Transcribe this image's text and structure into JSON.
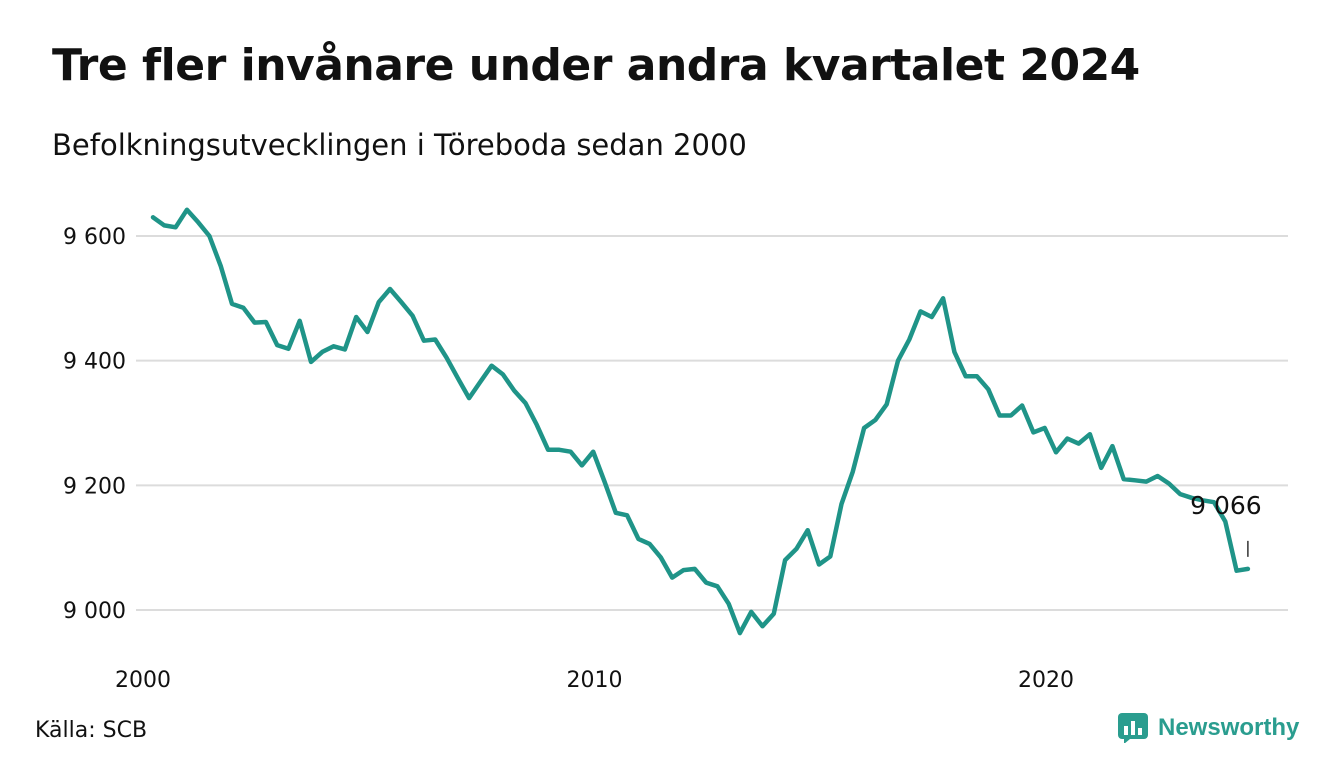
{
  "title": "Tre fler invånare under andra kvartalet 2024",
  "subtitle": "Befolkningsutvecklingen i Töreboda sedan 2000",
  "source": "Källa: SCB",
  "brand": {
    "name": "Newsworthy",
    "color": "#2a9d8f"
  },
  "chart_data": {
    "type": "line",
    "ylim": [
      8940,
      9650
    ],
    "xlim": [
      2000,
      2025.2
    ],
    "yticks": [
      9000,
      9200,
      9400,
      9600
    ],
    "ytick_labels": [
      "9 000",
      "9 200",
      "9 400",
      "9 600"
    ],
    "xticks": [
      2000,
      2010,
      2020
    ],
    "xtick_labels": [
      "2000",
      "2010",
      "2020"
    ],
    "grid": true,
    "line_color": "#1f9488",
    "end_label": "9 066",
    "series": [
      {
        "x": [
          2000.0,
          2000.25,
          2000.5,
          2000.75,
          2001.0,
          2001.25,
          2001.5,
          2001.75,
          2002.0,
          2002.25,
          2002.5,
          2002.75,
          2003.0,
          2003.25,
          2003.5,
          2003.75,
          2004.0,
          2004.25,
          2004.5,
          2004.75,
          2005.0,
          2005.25,
          2005.5,
          2005.75,
          2006.0,
          2006.25,
          2006.5,
          2006.75,
          2007.0,
          2007.25,
          2007.5,
          2007.75,
          2008.0,
          2008.25,
          2008.5,
          2008.75,
          2009.0,
          2009.25,
          2009.5,
          2009.75,
          2010.0,
          2010.25,
          2010.5,
          2010.75,
          2011.0,
          2011.25,
          2011.5,
          2011.75,
          2012.0,
          2012.25,
          2012.5,
          2012.75,
          2013.0,
          2013.25,
          2013.5,
          2013.75,
          2014.0,
          2014.25,
          2014.5,
          2014.75,
          2015.0,
          2015.25,
          2015.5,
          2015.75,
          2016.0,
          2016.25,
          2016.5,
          2016.75,
          2017.0,
          2017.25,
          2017.5,
          2017.75,
          2018.0,
          2018.25,
          2018.5,
          2018.75,
          2019.0,
          2019.25,
          2019.5,
          2019.75,
          2020.0,
          2020.25,
          2020.5,
          2020.75,
          2021.0,
          2021.25,
          2021.5,
          2021.75,
          2022.0,
          2022.25,
          2022.5,
          2022.75,
          2023.0,
          2023.25,
          2023.5,
          2023.75,
          2024.0,
          2024.25
        ],
        "values": [
          9630,
          9617,
          9614,
          9642,
          9622,
          9600,
          9552,
          9491,
          9485,
          9461,
          9462,
          9425,
          9419,
          9464,
          9398,
          9414,
          9423,
          9418,
          9470,
          9446,
          9494,
          9515,
          9494,
          9472,
          9432,
          9434,
          9405,
          9372,
          9340,
          9366,
          9392,
          9378,
          9352,
          9332,
          9297,
          9257,
          9257,
          9254,
          9232,
          9254,
          9206,
          9156,
          9152,
          9114,
          9106,
          9084,
          9052,
          9064,
          9066,
          9044,
          9038,
          9010,
          8963,
          8997,
          8974,
          8994,
          9080,
          9098,
          9128,
          9073,
          9086,
          9170,
          9222,
          9292,
          9305,
          9330,
          9400,
          9434,
          9479,
          9470,
          9500,
          9414,
          9375,
          9375,
          9354,
          9312,
          9312,
          9328,
          9285,
          9292,
          9253,
          9275,
          9267,
          9282,
          9228,
          9263,
          9210,
          9208,
          9206,
          9215,
          9203,
          9186,
          9180,
          9176,
          9173,
          9142,
          9063,
          9066
        ]
      }
    ]
  }
}
